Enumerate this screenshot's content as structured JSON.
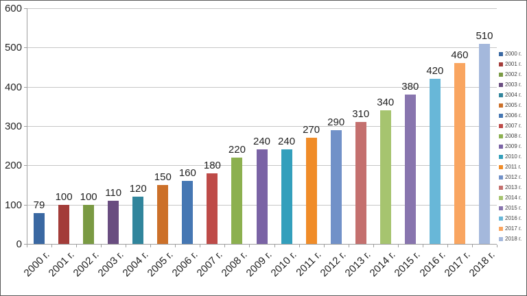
{
  "chart_data": {
    "type": "bar",
    "title": "",
    "xlabel": "",
    "ylabel": "",
    "categories": [
      "2000 г.",
      "2001 г.",
      "2002 г.",
      "2003 г.",
      "2004 г.",
      "2005 г.",
      "2006 г.",
      "2007 г.",
      "2008 г.",
      "2009 г.",
      "2010 г.",
      "2011 г.",
      "2012 г.",
      "2013 г.",
      "2014 г.",
      "2015 г.",
      "2016 г.",
      "2017 г.",
      "2018 г."
    ],
    "values": [
      79,
      100,
      100,
      110,
      120,
      150,
      160,
      180,
      220,
      240,
      240,
      270,
      290,
      310,
      340,
      380,
      420,
      460,
      510
    ],
    "colors": [
      "#3A68A2",
      "#A33C39",
      "#7A9A43",
      "#694D80",
      "#31859C",
      "#CC7029",
      "#4577B3",
      "#BE4B48",
      "#8CB04F",
      "#7A63A5",
      "#339FBC",
      "#F08C28",
      "#7191C8",
      "#C4706E",
      "#A6C46F",
      "#8875AE",
      "#68B7D8",
      "#F9A560",
      "#A4B8DC"
    ],
    "ylim": [
      0,
      600
    ],
    "yticks": [
      "0",
      "100",
      "200",
      "300",
      "400",
      "500",
      "600"
    ],
    "grid": true,
    "legend_position": "right",
    "legend_labels": [
      "2000 г.",
      "2001 г.",
      "2002 г.",
      "2003 г.",
      "2004 г.",
      "2005 г.",
      "2006 г.",
      "2007 г.",
      "2008 г.",
      "2009 г.",
      "2010 г.",
      "2011 г.",
      "2012 г.",
      "2013 г.",
      "2014 г.",
      "2015 г.",
      "2016 г.",
      "2017 г.",
      "2018 г."
    ],
    "style": {
      "background": "#FFFFFF",
      "border_color": "#595959",
      "grid_color": "#C6C6C6",
      "axis_color": "#9E9E9E",
      "text_color": "#1F1F1F",
      "legend_text_color": "#404040"
    }
  }
}
